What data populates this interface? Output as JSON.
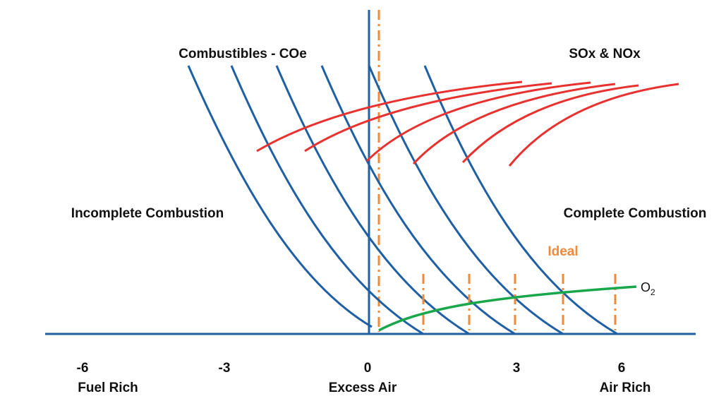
{
  "diagram": {
    "title_combustibles": "Combustibles - COe",
    "title_sox_nox": "SOx & NOx",
    "region_left": "Incomplete Combustion",
    "region_right": "Complete Combustion",
    "ideal_label": "Ideal",
    "o2_label_main": "O",
    "o2_label_sub": "2",
    "axis": {
      "ticks": [
        {
          "value": "-6",
          "label": "Fuel Rich"
        },
        {
          "value": "-3",
          "label": ""
        },
        {
          "value": "0",
          "label": "Excess Air"
        },
        {
          "value": "3",
          "label": ""
        },
        {
          "value": "6",
          "label": "Air Rich"
        }
      ]
    },
    "colors": {
      "blue": "#1f5fa3",
      "red": "#e8322f",
      "green": "#1aa64a",
      "orange": "#ef8a3b",
      "text": "#111111"
    },
    "series_counts": {
      "combustible_curves": 6,
      "sox_nox_curves": 6,
      "ideal_markers": 5
    }
  }
}
